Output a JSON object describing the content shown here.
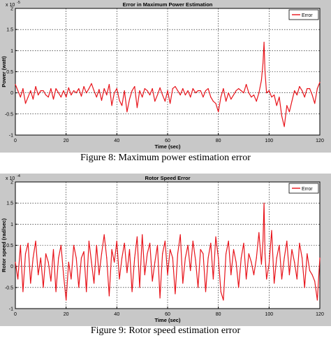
{
  "charts": [
    {
      "caption": "Figure 8:  Maximum power estimation error",
      "chart_data": {
        "type": "line",
        "title": "Error in Maximum Power Estimation",
        "xlabel": "Time (sec)",
        "ylabel": "Power (watt)",
        "y_exponent_label": "x 10",
        "y_exponent": "-5",
        "xlim": [
          0,
          120
        ],
        "ylim": [
          -1,
          2
        ],
        "x_ticks": [
          0,
          20,
          40,
          60,
          80,
          100,
          120
        ],
        "y_ticks": [
          -1,
          -0.5,
          0,
          0.5,
          1,
          1.5,
          2
        ],
        "y_tick_labels": [
          "-1",
          "-0.5",
          "0",
          "0.5",
          "1",
          "1.5",
          "2"
        ],
        "grid": true,
        "legend_position": "top-right",
        "series": [
          {
            "name": "Error",
            "color": "#e8141b",
            "x": [
              0,
              1,
              2,
              3,
              4,
              5,
              6,
              7,
              8,
              9,
              10,
              11,
              12,
              13,
              14,
              15,
              16,
              17,
              18,
              19,
              20,
              21,
              22,
              23,
              24,
              25,
              26,
              27,
              28,
              29,
              30,
              31,
              32,
              33,
              34,
              35,
              36,
              37,
              38,
              39,
              40,
              41,
              42,
              43,
              44,
              45,
              46,
              47,
              48,
              49,
              50,
              51,
              52,
              53,
              54,
              55,
              56,
              57,
              58,
              59,
              60,
              61,
              62,
              63,
              64,
              65,
              66,
              67,
              68,
              69,
              70,
              71,
              72,
              73,
              74,
              75,
              76,
              77,
              78,
              79,
              80,
              81,
              82,
              83,
              84,
              85,
              86,
              87,
              88,
              89,
              90,
              91,
              92,
              93,
              94,
              95,
              96,
              97,
              97.6,
              98,
              98.4,
              99,
              100,
              101,
              102,
              103,
              104,
              105,
              106,
              107,
              108,
              109,
              110,
              111,
              112,
              113,
              114,
              115,
              116,
              117,
              118,
              119,
              120
            ],
            "values": [
              0.2,
              0.05,
              -0.1,
              0.1,
              -0.25,
              -0.1,
              0.05,
              -0.15,
              0.15,
              -0.05,
              0.05,
              0.05,
              -0.05,
              -0.1,
              0.1,
              -0.15,
              0.1,
              0.0,
              -0.1,
              0.05,
              -0.1,
              0.12,
              -0.05,
              0.05,
              0.0,
              0.1,
              -0.08,
              0.15,
              0.0,
              0.1,
              0.22,
              0.05,
              -0.1,
              0.08,
              -0.18,
              0.1,
              -0.05,
              0.2,
              -0.3,
              0.0,
              0.1,
              -0.18,
              -0.3,
              0.05,
              -0.45,
              -0.15,
              0.05,
              0.15,
              -0.35,
              0.05,
              -0.1,
              0.1,
              0.05,
              -0.05,
              0.1,
              -0.2,
              -0.05,
              0.12,
              -0.05,
              -0.2,
              0.05,
              -0.25,
              0.1,
              0.15,
              0.05,
              -0.05,
              0.1,
              -0.05,
              0.05,
              -0.1,
              0.1,
              0.0,
              0.05,
              0.05,
              -0.1,
              0.05,
              0.1,
              -0.1,
              -0.2,
              -0.25,
              -0.45,
              -0.1,
              0.1,
              -0.2,
              0.0,
              -0.15,
              -0.05,
              0.05,
              0.1,
              0.05,
              0.0,
              0.2,
              0.0,
              -0.1,
              -0.05,
              -0.2,
              0.0,
              0.3,
              0.7,
              1.2,
              0.5,
              0.0,
              0.05,
              -0.1,
              -0.05,
              -0.3,
              -0.1,
              -0.55,
              -0.8,
              -0.3,
              -0.45,
              -0.2,
              0.05,
              -0.05,
              0.15,
              0.05,
              -0.1,
              0.1,
              0.1,
              -0.05,
              -0.25,
              0.1,
              0.25
            ]
          }
        ]
      }
    },
    {
      "caption": "Figure 9: Rotor speed estimation error",
      "chart_data": {
        "type": "line",
        "title": "Rotor Speed Error",
        "xlabel": "Time (sec)",
        "ylabel": "Rotor speed (rad/sec)",
        "y_exponent_label": "x 10",
        "y_exponent": "-4",
        "xlim": [
          0,
          120
        ],
        "ylim": [
          -1,
          2
        ],
        "x_ticks": [
          0,
          20,
          40,
          60,
          80,
          100,
          120
        ],
        "y_ticks": [
          -1,
          -0.5,
          0,
          0.5,
          1,
          1.5,
          2
        ],
        "y_tick_labels": [
          "-1",
          "-0.5",
          "0",
          "0.5",
          "1",
          "1.5",
          "2"
        ],
        "grid": true,
        "legend_position": "top-right",
        "series": [
          {
            "name": "Error",
            "color": "#e8141b",
            "x": [
              0,
              1,
              2,
              3,
              4,
              5,
              6,
              7,
              8,
              9,
              10,
              11,
              12,
              13,
              14,
              15,
              16,
              17,
              18,
              19,
              20,
              21,
              22,
              23,
              24,
              25,
              26,
              27,
              28,
              29,
              30,
              31,
              32,
              33,
              34,
              35,
              36,
              37,
              38,
              39,
              40,
              41,
              42,
              43,
              44,
              45,
              46,
              47,
              48,
              49,
              50,
              51,
              52,
              53,
              54,
              55,
              56,
              57,
              58,
              59,
              60,
              61,
              62,
              63,
              64,
              65,
              66,
              67,
              68,
              69,
              70,
              71,
              72,
              73,
              74,
              75,
              76,
              77,
              78,
              79,
              80,
              81,
              82,
              83,
              84,
              85,
              86,
              87,
              88,
              89,
              90,
              91,
              92,
              93,
              94,
              95,
              96,
              97,
              97.6,
              98,
              98.4,
              99,
              100,
              101,
              102,
              103,
              104,
              105,
              106,
              107,
              108,
              109,
              110,
              111,
              112,
              113,
              114,
              115,
              116,
              117,
              118,
              119,
              120
            ],
            "values": [
              0.1,
              -0.3,
              0.5,
              -0.6,
              0.3,
              0.55,
              -0.4,
              0.2,
              0.6,
              -0.2,
              0.2,
              -0.5,
              0.3,
              0.1,
              -0.35,
              0.4,
              -0.6,
              0.2,
              0.5,
              -0.2,
              -0.8,
              0.1,
              -0.3,
              0.5,
              0.2,
              -0.5,
              0.2,
              0.35,
              -0.6,
              0.6,
              0.1,
              -0.4,
              0.5,
              -0.2,
              0.3,
              0.75,
              0.2,
              -0.7,
              0.4,
              0.1,
              0.6,
              -0.3,
              0.2,
              0.55,
              -0.15,
              0.4,
              -0.6,
              0.2,
              0.7,
              -0.5,
              0.75,
              -0.2,
              0.3,
              0.55,
              -0.35,
              0.1,
              0.5,
              -0.75,
              0.3,
              0.6,
              -0.2,
              0.4,
              0.2,
              -0.65,
              0.3,
              0.75,
              -0.4,
              0.2,
              0.5,
              -0.1,
              0.6,
              0.15,
              -0.5,
              0.4,
              0.3,
              -0.6,
              0.2,
              0.55,
              -0.3,
              0.7,
              0.2,
              -0.6,
              -0.8,
              0.3,
              0.6,
              -0.2,
              0.4,
              0.1,
              -0.5,
              0.2,
              0.55,
              -0.3,
              0.3,
              0.1,
              -0.2,
              0.2,
              0.8,
              0.05,
              0.6,
              1.5,
              0.3,
              -0.3,
              0.05,
              0.85,
              -0.4,
              0.2,
              0.5,
              -0.3,
              0.2,
              0.6,
              -0.2,
              0.4,
              0.1,
              -0.3,
              0.55,
              0.2,
              -0.5,
              0.3,
              -0.1,
              -0.2,
              -0.35,
              -0.8,
              0.2
            ]
          }
        ]
      }
    }
  ]
}
